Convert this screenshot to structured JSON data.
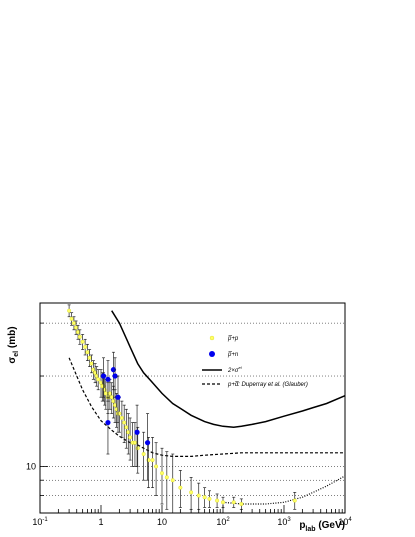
{
  "chart_data": {
    "type": "scatter",
    "title": "",
    "xlabel_main": "p",
    "xlabel_sub": "lab",
    "xlabel_unit": " (GeV)",
    "ylabel_main": "σ",
    "ylabel_sub": "el",
    "ylabel_unit": " (mb)",
    "xscale": "log",
    "yscale": "log",
    "xlim": [
      0.1,
      10000
    ],
    "ylim": [
      7,
      35
    ],
    "grid": "horizontal dotted",
    "x_ticks": [
      {
        "value": 0.1,
        "mant": "10",
        "exp": "-1"
      },
      {
        "value": 1,
        "mant": "1",
        "exp": ""
      },
      {
        "value": 10,
        "mant": "10",
        "exp": ""
      },
      {
        "value": 100,
        "mant": "10",
        "exp": "2"
      },
      {
        "value": 1000,
        "mant": "10",
        "exp": "3"
      },
      {
        "value": 10000,
        "mant": "10",
        "exp": "4"
      }
    ],
    "y_ticks": [
      {
        "value": 10,
        "label": "10"
      }
    ],
    "legend_position": "right",
    "legend": [
      {
        "label_pre": "p̅+p",
        "label_sup": "",
        "label_post": "",
        "style": "yellow-point"
      },
      {
        "label_pre": "p̅+n",
        "label_sup": "",
        "label_post": "",
        "style": "blue-point"
      },
      {
        "label_pre": "2×σ",
        "label_sup": "el",
        "label_post": "",
        "style": "solid-line"
      },
      {
        "label_pre": "p+",
        "label_sup": "",
        "label_post": "d̅: Duperray et al. (Glauber)",
        "style": "dashed-line"
      }
    ],
    "series": [
      {
        "name": "p̅+p",
        "color": "#ffff66",
        "x": [
          0.3,
          0.33,
          0.36,
          0.39,
          0.42,
          0.45,
          0.5,
          0.55,
          0.6,
          0.65,
          0.7,
          0.75,
          0.8,
          0.85,
          0.9,
          1.0,
          1.05,
          1.1,
          1.15,
          1.2,
          1.3,
          1.4,
          1.5,
          1.6,
          1.7,
          1.8,
          1.9,
          2.0,
          2.2,
          2.4,
          2.6,
          2.8,
          3.0,
          3.3,
          3.6,
          4.0,
          5.0,
          6.0,
          7.0,
          8.0,
          10.0,
          12.0,
          15.0,
          20.0,
          30.0,
          40.0,
          50.0,
          60.0,
          80.0,
          100.0,
          150.0,
          200.0,
          1500.0
        ],
        "y": [
          33,
          31,
          30,
          29,
          28,
          27,
          26,
          25,
          24,
          23,
          22,
          21,
          20.5,
          20,
          19.5,
          19,
          18.5,
          18.5,
          18,
          17.5,
          17,
          17.5,
          17,
          16.5,
          16,
          15.5,
          15,
          15,
          14.5,
          14,
          13.5,
          13,
          12.5,
          12,
          12,
          11.5,
          11,
          10.5,
          10.5,
          10,
          9.5,
          9.2,
          9.0,
          8.5,
          8.2,
          8.0,
          7.9,
          7.8,
          7.7,
          7.6,
          7.6,
          7.5,
          7.7
        ],
        "err": [
          1.5,
          1.5,
          1.5,
          1.5,
          1.5,
          1.5,
          1.5,
          1.5,
          1.5,
          1.5,
          1.5,
          1.5,
          1.5,
          1.5,
          1.5,
          2,
          2,
          2,
          2,
          2,
          2,
          2,
          2,
          2,
          2,
          2,
          2,
          2,
          2,
          2,
          2,
          2,
          2,
          2,
          2,
          2,
          2,
          2,
          2,
          2,
          2,
          2,
          2,
          1.2,
          1.0,
          0.8,
          0.6,
          0.5,
          0.4,
          0.3,
          0.3,
          0.3,
          0.5
        ]
      },
      {
        "name": "p̅+n",
        "color": "#0000ee",
        "x": [
          1.1,
          1.3,
          1.6,
          1.7,
          1.9,
          1.3,
          3.9,
          5.8
        ],
        "y": [
          20,
          19.5,
          21,
          20,
          17,
          14,
          13,
          12
        ],
        "err": [
          3,
          3,
          3,
          3,
          3,
          3,
          3,
          3
        ]
      }
    ],
    "curves": [
      {
        "name": "2×σel",
        "style": "solid",
        "x": [
          1.5,
          2,
          3,
          4,
          5,
          7,
          10,
          15,
          20,
          30,
          50,
          70,
          100,
          150,
          200,
          300,
          500,
          1000,
          2000,
          3000,
          5000,
          10000
        ],
        "y": [
          33,
          30,
          25,
          22,
          20.5,
          19,
          17.5,
          16.2,
          15.6,
          14.8,
          14.1,
          13.8,
          13.6,
          13.5,
          13.6,
          13.8,
          14.1,
          14.7,
          15.3,
          15.7,
          16.2,
          17.2
        ]
      },
      {
        "name": "p+d̅: Duperray et al. (Glauber)",
        "style": "dashed",
        "x": [
          0.3,
          0.5,
          0.7,
          1,
          1.5,
          2,
          3,
          4,
          5,
          7,
          10,
          15,
          20,
          30,
          50,
          100,
          200,
          500,
          1000,
          3000,
          10000
        ],
        "y": [
          23,
          18,
          15.8,
          14.2,
          13.2,
          12.6,
          12.0,
          11.8,
          11.5,
          11.1,
          10.9,
          10.8,
          10.8,
          10.8,
          10.9,
          11.0,
          11.1,
          11.1,
          11.1,
          11.1,
          11.1
        ]
      },
      {
        "name": "",
        "style": "dotted",
        "x": [
          100,
          200,
          300,
          500,
          1000,
          2000,
          3000,
          5000,
          10000
        ],
        "y": [
          7.6,
          7.5,
          7.5,
          7.5,
          7.6,
          7.9,
          8.2,
          8.6,
          9.3
        ]
      }
    ]
  }
}
